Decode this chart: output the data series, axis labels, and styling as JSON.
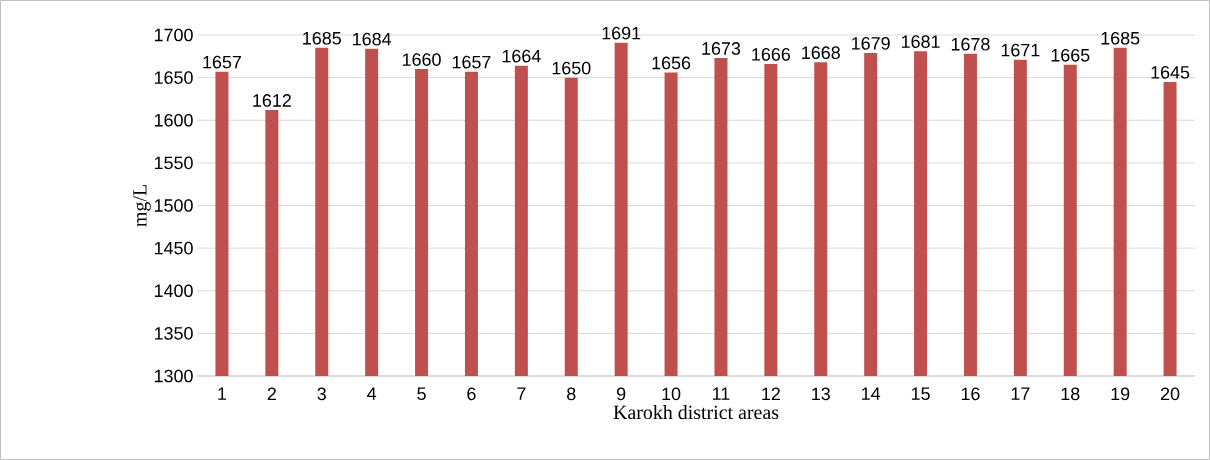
{
  "chart_data": {
    "type": "bar",
    "xlabel": "Karokh district areas",
    "ylabel": "mg/L",
    "categories": [
      "1",
      "2",
      "3",
      "4",
      "5",
      "6",
      "7",
      "8",
      "9",
      "10",
      "11",
      "12",
      "13",
      "14",
      "15",
      "16",
      "17",
      "18",
      "19",
      "20"
    ],
    "values": [
      1657,
      1612,
      1685,
      1684,
      1660,
      1657,
      1664,
      1650,
      1691,
      1656,
      1673,
      1666,
      1668,
      1679,
      1681,
      1678,
      1671,
      1665,
      1685,
      1645
    ],
    "color": "#c0504d",
    "ylim": [
      1300,
      1700
    ],
    "yticks": [
      1300,
      1350,
      1400,
      1450,
      1500,
      1550,
      1600,
      1650,
      1700
    ],
    "grid": "y",
    "data_labels": true
  }
}
